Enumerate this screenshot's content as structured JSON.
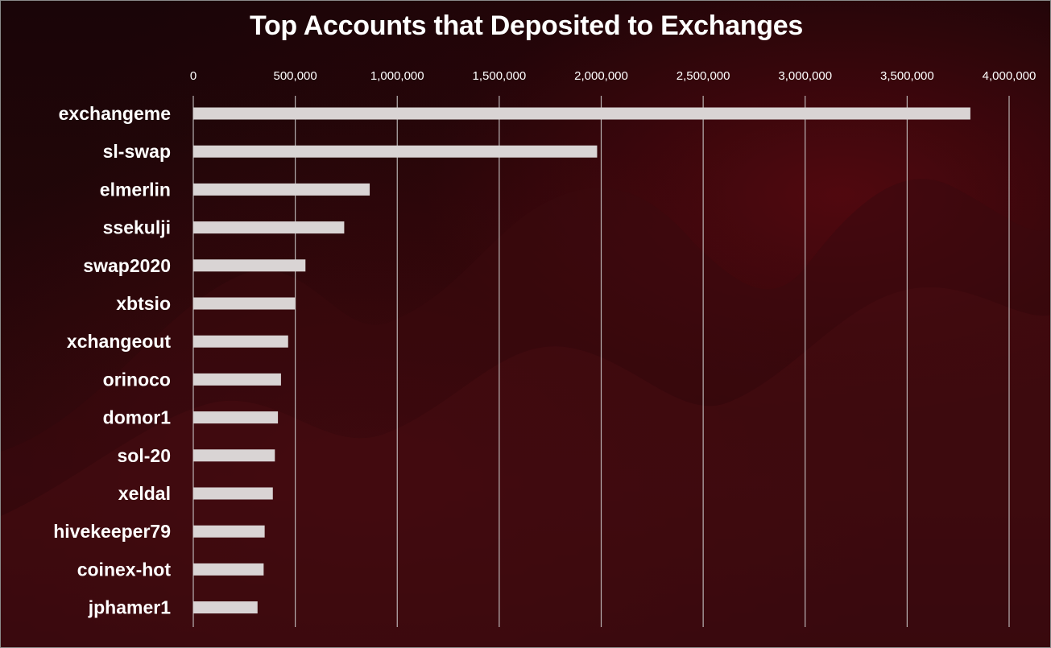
{
  "colors": {
    "bar": "#d9d4d4",
    "grid": "#d0d0d0",
    "text": "#ffffff"
  },
  "chart_data": {
    "type": "bar",
    "orientation": "horizontal",
    "title": "Top Accounts that Deposited to Exchanges",
    "xlabel": "",
    "ylabel": "",
    "xlim": [
      0,
      4000000
    ],
    "x_ticks": [
      {
        "value": 0,
        "label": "0"
      },
      {
        "value": 500000,
        "label": "500,000"
      },
      {
        "value": 1000000,
        "label": "1,000,000"
      },
      {
        "value": 1500000,
        "label": "1,500,000"
      },
      {
        "value": 2000000,
        "label": "2,000,000"
      },
      {
        "value": 2500000,
        "label": "2,500,000"
      },
      {
        "value": 3000000,
        "label": "3,000,000"
      },
      {
        "value": 3500000,
        "label": "3,500,000"
      },
      {
        "value": 4000000,
        "label": "4,000,000"
      }
    ],
    "x_axis_position": "top",
    "grid": true,
    "legend": "none",
    "categories": [
      "exchangeme",
      "sl-swap",
      "elmerlin",
      "ssekulji",
      "swap2020",
      "xbtsio",
      "xchangeout",
      "orinoco",
      "domor1",
      "sol-20",
      "xeldal",
      "hivekeeper79",
      "coinex-hot",
      "jphamer1"
    ],
    "values": [
      3810000,
      1980000,
      865000,
      740000,
      550000,
      500000,
      465000,
      430000,
      415000,
      400000,
      390000,
      350000,
      345000,
      315000
    ]
  }
}
